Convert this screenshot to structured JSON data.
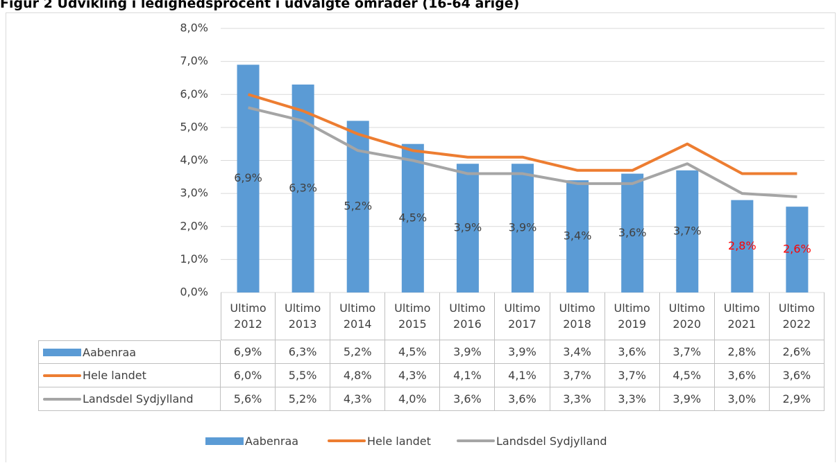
{
  "chart_data": {
    "type": "bar",
    "title": "Figur 2 Udvikling i ledighedsprocent i udvalgte områder (16-64 årige)",
    "categories": [
      "Ultimo 2012",
      "Ultimo 2013",
      "Ultimo 2014",
      "Ultimo 2015",
      "Ultimo 2016",
      "Ultimo 2017",
      "Ultimo 2018",
      "Ultimo 2019",
      "Ultimo 2020",
      "Ultimo 2021",
      "Ultimo 2022"
    ],
    "series": [
      {
        "name": "Aabenraa",
        "type": "bar",
        "color": "#5b9bd5",
        "values": [
          6.9,
          6.3,
          5.2,
          4.5,
          3.9,
          3.9,
          3.4,
          3.6,
          3.7,
          2.8,
          2.6
        ],
        "value_labels": [
          "6,9%",
          "6,3%",
          "5,2%",
          "4,5%",
          "3,9%",
          "3,9%",
          "3,4%",
          "3,6%",
          "3,7%",
          "2,8%",
          "2,6%"
        ],
        "label_colors": [
          "#404040",
          "#404040",
          "#404040",
          "#404040",
          "#404040",
          "#404040",
          "#404040",
          "#404040",
          "#404040",
          "#ff0000",
          "#ff0000"
        ]
      },
      {
        "name": "Hele landet",
        "type": "line",
        "color": "#ed7d31",
        "values": [
          6.0,
          5.5,
          4.8,
          4.3,
          4.1,
          4.1,
          3.7,
          3.7,
          4.5,
          3.6,
          3.6
        ],
        "value_labels": [
          "6,0%",
          "5,5%",
          "4,8%",
          "4,3%",
          "4,1%",
          "4,1%",
          "3,7%",
          "3,7%",
          "4,5%",
          "3,6%",
          "3,6%"
        ]
      },
      {
        "name": "Landsdel Sydjylland",
        "type": "line",
        "color": "#a5a5a5",
        "values": [
          5.6,
          5.2,
          4.3,
          4.0,
          3.6,
          3.6,
          3.3,
          3.3,
          3.9,
          3.0,
          2.9
        ],
        "value_labels": [
          "5,6%",
          "5,2%",
          "4,3%",
          "4,0%",
          "3,6%",
          "3,6%",
          "3,3%",
          "3,3%",
          "3,9%",
          "3,0%",
          "2,9%"
        ]
      }
    ],
    "ylim": [
      0,
      8
    ],
    "yticks": [
      {
        "value": 0,
        "label": "0,0%"
      },
      {
        "value": 1,
        "label": "1,0%"
      },
      {
        "value": 2,
        "label": "2,0%"
      },
      {
        "value": 3,
        "label": "3,0%"
      },
      {
        "value": 4,
        "label": "4,0%"
      },
      {
        "value": 5,
        "label": "5,0%"
      },
      {
        "value": 6,
        "label": "6,0%"
      },
      {
        "value": 7,
        "label": "7,0%"
      },
      {
        "value": 8,
        "label": "8,0%"
      }
    ],
    "grid": true,
    "legend": "bottom"
  }
}
